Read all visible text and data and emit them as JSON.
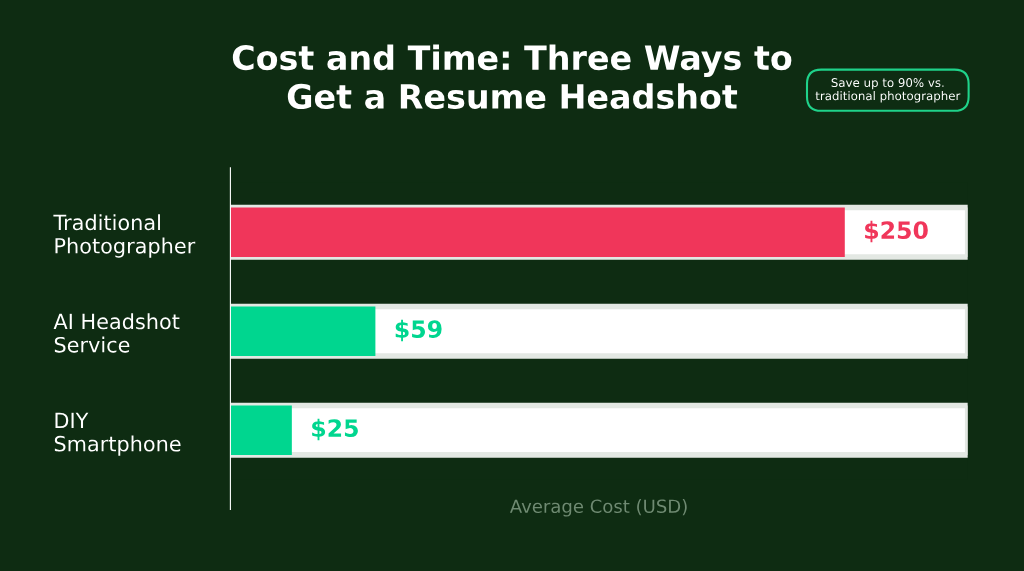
{
  "chart_data": {
    "type": "bar",
    "orientation": "horizontal",
    "title": "Cost and Time: Three Ways to\nGet a Resume Headshot",
    "xlabel": "Average Cost (USD)",
    "categories": [
      "Traditional\nPhotographer",
      "AI Headshot\nService",
      "DIY\nSmartphone"
    ],
    "values": [
      250,
      59,
      25
    ],
    "colors": [
      "#f0365a",
      "#00d68f",
      "#00d68f"
    ],
    "value_labels": [
      "$250",
      "$59",
      "$25"
    ],
    "xlim": [
      0,
      300
    ],
    "tick_labels": "y",
    "grid": false,
    "legend": false,
    "annotations": [
      "Save up to 90% vs.\ntraditional photographer"
    ]
  }
}
